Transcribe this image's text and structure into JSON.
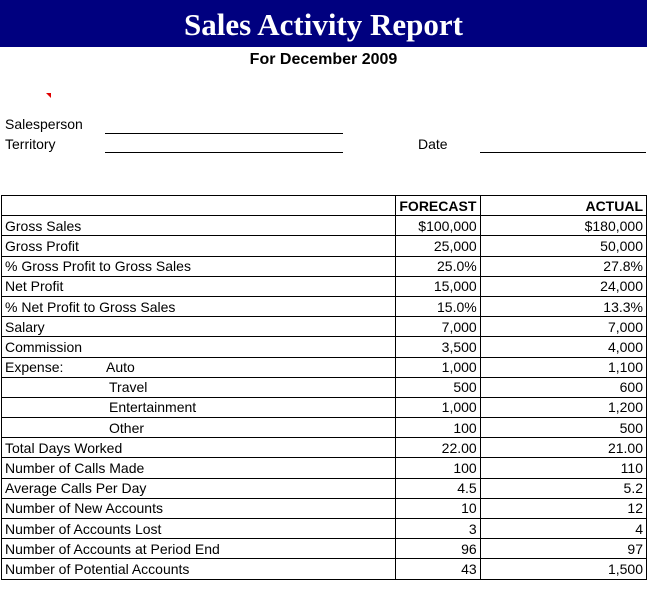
{
  "header": {
    "title": "Sales Activity Report",
    "subtitle": "For December 2009"
  },
  "fields": {
    "salesperson_label": "Salesperson",
    "territory_label": "Territory",
    "date_label": "Date"
  },
  "table": {
    "col_forecast": "FORECAST",
    "col_actual": "ACTUAL",
    "expense_label": "Expense:",
    "rows": [
      {
        "label": "Gross Sales",
        "forecast": "$100,000",
        "actual": "$180,000"
      },
      {
        "label": "Gross Profit",
        "forecast": "25,000",
        "actual": "50,000"
      },
      {
        "label": "% Gross Profit to Gross Sales",
        "forecast": "25.0%",
        "actual": "27.8%"
      },
      {
        "label": "Net Profit",
        "forecast": "15,000",
        "actual": "24,000"
      },
      {
        "label": "% Net Profit to Gross Sales",
        "forecast": "15.0%",
        "actual": "13.3%"
      },
      {
        "label": "Salary",
        "forecast": "7,000",
        "actual": "7,000"
      },
      {
        "label": "Commission",
        "forecast": "3,500",
        "actual": "4,000"
      },
      {
        "label": "Auto",
        "forecast": "1,000",
        "actual": "1,100"
      },
      {
        "label": "Travel",
        "forecast": "500",
        "actual": "600"
      },
      {
        "label": "Entertainment",
        "forecast": "1,000",
        "actual": "1,200"
      },
      {
        "label": "Other",
        "forecast": "100",
        "actual": "500"
      },
      {
        "label": "Total Days Worked",
        "forecast": "22.00",
        "actual": "21.00"
      },
      {
        "label": "Number of Calls Made",
        "forecast": "100",
        "actual": "110"
      },
      {
        "label": "Average Calls Per Day",
        "forecast": "4.5",
        "actual": "5.2"
      },
      {
        "label": "Number of New Accounts",
        "forecast": "10",
        "actual": "12"
      },
      {
        "label": "Number of Accounts Lost",
        "forecast": "3",
        "actual": "4"
      },
      {
        "label": "Number of Accounts at Period End",
        "forecast": "96",
        "actual": "97"
      },
      {
        "label": "Number of Potential Accounts",
        "forecast": "43",
        "actual": "1,500"
      }
    ]
  }
}
